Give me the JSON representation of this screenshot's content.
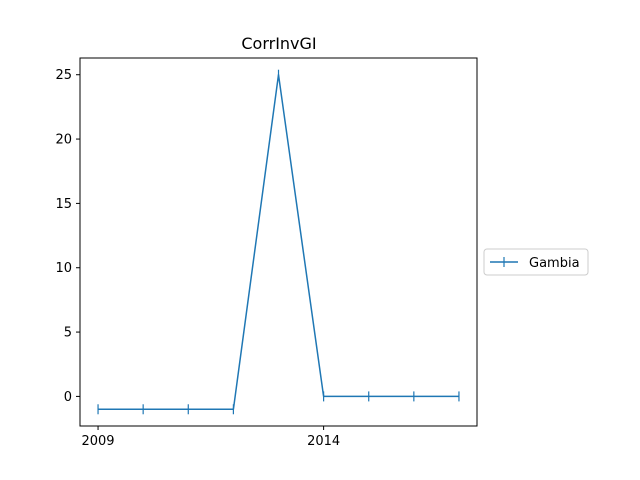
{
  "chart_data": {
    "type": "line",
    "title": "CorrInvGI",
    "xlabel": "",
    "ylabel": "",
    "x": [
      2009,
      2010,
      2011,
      2012,
      2013,
      2014,
      2015,
      2016,
      2017
    ],
    "series": [
      {
        "name": "Gambia",
        "values": [
          -1,
          -1,
          -1,
          -1,
          25,
          0,
          0,
          0,
          0
        ],
        "color": "#1f77b4",
        "marker": "vline"
      }
    ],
    "xticks": [
      2009,
      2014
    ],
    "xtick_labels": [
      "2009",
      "2014"
    ],
    "yticks": [
      0,
      5,
      10,
      15,
      20,
      25
    ],
    "ytick_labels": [
      "0",
      "5",
      "10",
      "15",
      "20",
      "25"
    ],
    "xlim": [
      2008.6,
      2017.4
    ],
    "ylim": [
      -2.3,
      26.3
    ],
    "grid": false,
    "legend_position": "right"
  }
}
